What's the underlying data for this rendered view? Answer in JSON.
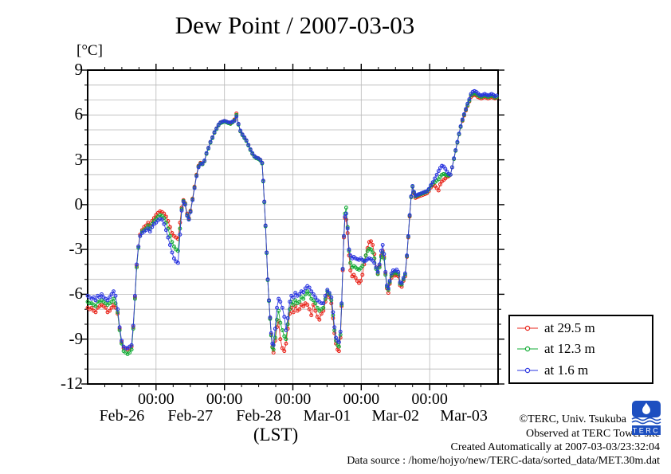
{
  "window": {
    "title": "Dew Point / 2007-03-03"
  },
  "footer": {
    "copyright": "©TERC, Univ. Tsukuba",
    "observed": "Observed at TERC Tower site",
    "created": "Created Automatically at 2007-03-03/23:32:04",
    "datasource": "Data source : /home/hojyo/new/TERC-data/sorted_data/MET.30m.dat",
    "logo_text": "TERC",
    "logo_color": "#1d4fc0"
  },
  "legend": {
    "items": [
      {
        "label": "at 29.5 m",
        "color": "#e8251b"
      },
      {
        "label": "at 12.3 m",
        "color": "#12ab35"
      },
      {
        "label": "at 1.6 m",
        "color": "#2a35e0"
      }
    ]
  },
  "chart_data": {
    "type": "line",
    "title": "Dew Point / 2007-03-03",
    "y_unit_label": "[°C]",
    "xlabel": "(LST)",
    "ylim": [
      -12,
      9
    ],
    "y_major_ticks": [
      9,
      6,
      3,
      0,
      -3,
      -6,
      -9,
      -12
    ],
    "y_minor_step": 1,
    "x_range_hours": [
      0,
      144
    ],
    "x_major_tick_hours": [
      24,
      48,
      72,
      96,
      120
    ],
    "x_major_tick_label": "00:00",
    "x_minor_step_hours": 6,
    "day_labels": [
      "Feb-26",
      "Feb-27",
      "Feb-28",
      "Mar-01",
      "Mar-02",
      "Mar-03"
    ],
    "grid": {
      "h_step_deg": 1,
      "v_at_midnights": true,
      "color": "#b8b8b8"
    },
    "legend_position": "outside-right-bottom",
    "series": [
      {
        "name": "at 29.5 m",
        "color": "#e8251b",
        "column": 1
      },
      {
        "name": "at 12.3 m",
        "color": "#12ab35",
        "column": 2
      },
      {
        "name": "at 1.6 m",
        "color": "#2a35e0",
        "column": 3
      }
    ],
    "points_format": [
      "hours_since_Feb26_0000",
      "dewpoint_29.5m_C",
      "dewpoint_12.3m_C",
      "dewpoint_1.6m_C"
    ],
    "points": [
      [
        0,
        -6.9,
        -6.5,
        -6.1
      ],
      [
        0.7,
        -7.0,
        -6.6,
        -6.2
      ],
      [
        1.4,
        -6.9,
        -6.6,
        -6.3
      ],
      [
        2.1,
        -7.1,
        -6.7,
        -6.2
      ],
      [
        2.8,
        -7.2,
        -6.8,
        -6.4
      ],
      [
        3.5,
        -6.9,
        -6.5,
        -6.1
      ],
      [
        4.2,
        -6.8,
        -6.5,
        -6.2
      ],
      [
        4.9,
        -6.7,
        -6.4,
        -6.0
      ],
      [
        5.6,
        -6.8,
        -6.5,
        -6.2
      ],
      [
        6.3,
        -6.9,
        -6.6,
        -6.3
      ],
      [
        7,
        -7.2,
        -6.7,
        -6.4
      ],
      [
        7.7,
        -7.1,
        -6.6,
        -6.2
      ],
      [
        8.4,
        -6.9,
        -6.5,
        -6.0
      ],
      [
        9.1,
        -6.7,
        -6.3,
        -5.8
      ],
      [
        9.8,
        -6.9,
        -6.6,
        -6.1
      ],
      [
        10.5,
        -7.3,
        -7.2,
        -7.0
      ],
      [
        11.2,
        -8.3,
        -8.4,
        -8.2
      ],
      [
        11.9,
        -9.2,
        -9.3,
        -9.1
      ],
      [
        12.6,
        -9.6,
        -9.8,
        -9.5
      ],
      [
        13.3,
        -9.6,
        -9.9,
        -9.6
      ],
      [
        14,
        -9.7,
        -10.0,
        -9.6
      ],
      [
        14.7,
        -9.6,
        -9.9,
        -9.5
      ],
      [
        15.4,
        -9.5,
        -9.7,
        -9.4
      ],
      [
        16,
        -8.2,
        -8.3,
        -8.1
      ],
      [
        16.6,
        -6.2,
        -6.3,
        -6.1
      ],
      [
        17.2,
        -4.1,
        -4.2,
        -4.0
      ],
      [
        17.8,
        -2.8,
        -2.9,
        -2.8
      ],
      [
        18.4,
        -2.0,
        -2.1,
        -2.1
      ],
      [
        19.1,
        -1.7,
        -1.8,
        -1.9
      ],
      [
        19.8,
        -1.5,
        -1.7,
        -1.8
      ],
      [
        20.5,
        -1.4,
        -1.6,
        -1.7
      ],
      [
        21.2,
        -1.2,
        -1.4,
        -1.6
      ],
      [
        21.9,
        -1.4,
        -1.6,
        -1.8
      ],
      [
        22.6,
        -1.1,
        -1.3,
        -1.5
      ],
      [
        23.3,
        -0.9,
        -1.1,
        -1.3
      ],
      [
        24,
        -0.7,
        -0.95,
        -1.2
      ],
      [
        24.7,
        -0.55,
        -0.8,
        -1.05
      ],
      [
        25.4,
        -0.45,
        -0.7,
        -0.95
      ],
      [
        26.1,
        -0.5,
        -0.75,
        -1.0
      ],
      [
        26.8,
        -0.6,
        -0.9,
        -1.3
      ],
      [
        27.5,
        -0.8,
        -1.2,
        -1.7
      ],
      [
        28.2,
        -1.1,
        -1.6,
        -2.2
      ],
      [
        28.9,
        -1.5,
        -2.1,
        -2.7
      ],
      [
        29.6,
        -1.9,
        -2.5,
        -3.2
      ],
      [
        30.3,
        -2.1,
        -2.8,
        -3.6
      ],
      [
        31,
        -2.2,
        -3.0,
        -3.8
      ],
      [
        31.7,
        -2.3,
        -3.1,
        -3.9
      ],
      [
        32.4,
        -1.2,
        -1.6,
        -2.0
      ],
      [
        33,
        -0.2,
        -0.3,
        -0.4
      ],
      [
        33.6,
        0.3,
        0.25,
        0.2
      ],
      [
        34.2,
        0.1,
        0.05,
        0.0
      ],
      [
        34.9,
        -0.6,
        -0.7,
        -0.75
      ],
      [
        35.5,
        -0.9,
        -0.95,
        -1.0
      ],
      [
        36.1,
        -0.4,
        -0.45,
        -0.5
      ],
      [
        36.8,
        0.4,
        0.35,
        0.3
      ],
      [
        37.5,
        1.2,
        1.15,
        1.1
      ],
      [
        38.2,
        2.0,
        1.95,
        1.9
      ],
      [
        38.9,
        2.6,
        2.55,
        2.5
      ],
      [
        39.6,
        2.8,
        2.75,
        2.7
      ],
      [
        40.3,
        2.7,
        2.7,
        2.75
      ],
      [
        41,
        2.9,
        2.9,
        2.95
      ],
      [
        41.7,
        3.4,
        3.4,
        3.45
      ],
      [
        42.4,
        3.8,
        3.75,
        3.8
      ],
      [
        43.1,
        4.2,
        4.15,
        4.2
      ],
      [
        43.8,
        4.5,
        4.45,
        4.5
      ],
      [
        44.5,
        4.8,
        4.8,
        4.85
      ],
      [
        45.2,
        5.1,
        5.05,
        5.1
      ],
      [
        45.9,
        5.3,
        5.3,
        5.35
      ],
      [
        46.6,
        5.5,
        5.45,
        5.5
      ],
      [
        47.3,
        5.55,
        5.5,
        5.55
      ],
      [
        48,
        5.6,
        5.55,
        5.6
      ],
      [
        48.7,
        5.55,
        5.5,
        5.55
      ],
      [
        49.4,
        5.5,
        5.45,
        5.5
      ],
      [
        50.1,
        5.45,
        5.4,
        5.5
      ],
      [
        50.8,
        5.5,
        5.5,
        5.55
      ],
      [
        51.5,
        5.7,
        5.65,
        5.6
      ],
      [
        52.2,
        6.1,
        6.0,
        5.9
      ],
      [
        52.9,
        5.4,
        5.35,
        5.4
      ],
      [
        53.6,
        4.9,
        4.9,
        4.95
      ],
      [
        54.3,
        4.7,
        4.65,
        4.7
      ],
      [
        55,
        4.5,
        4.45,
        4.5
      ],
      [
        55.7,
        4.3,
        4.25,
        4.3
      ],
      [
        56.4,
        4.0,
        3.95,
        4.0
      ],
      [
        57.1,
        3.7,
        3.65,
        3.7
      ],
      [
        57.8,
        3.4,
        3.4,
        3.45
      ],
      [
        58.5,
        3.25,
        3.2,
        3.25
      ],
      [
        59.2,
        3.15,
        3.1,
        3.15
      ],
      [
        59.9,
        3.1,
        3.05,
        3.1
      ],
      [
        60.6,
        3.0,
        2.95,
        3.0
      ],
      [
        61.2,
        2.8,
        2.75,
        2.8
      ],
      [
        61.6,
        1.6,
        1.55,
        1.6
      ],
      [
        62,
        0.2,
        0.15,
        0.2
      ],
      [
        62.4,
        -1.4,
        -1.45,
        -1.4
      ],
      [
        62.8,
        -3.2,
        -3.25,
        -3.2
      ],
      [
        63.2,
        -5.0,
        -5.05,
        -5.0
      ],
      [
        63.6,
        -6.4,
        -6.45,
        -6.4
      ],
      [
        64,
        -7.6,
        -7.65,
        -7.55
      ],
      [
        64.4,
        -8.7,
        -8.75,
        -8.6
      ],
      [
        64.8,
        -9.5,
        -9.55,
        -9.3
      ],
      [
        65.2,
        -9.9,
        -9.7,
        -9.4
      ],
      [
        65.8,
        -9.1,
        -8.9,
        -8.3
      ],
      [
        66.4,
        -8.2,
        -7.7,
        -6.9
      ],
      [
        67,
        -7.8,
        -7.1,
        -6.3
      ],
      [
        67.6,
        -9.0,
        -7.9,
        -6.5
      ],
      [
        68.3,
        -9.6,
        -8.4,
        -6.9
      ],
      [
        69,
        -9.8,
        -8.8,
        -7.5
      ],
      [
        69.6,
        -9.3,
        -9.0,
        -8.4
      ],
      [
        70.2,
        -8.3,
        -8.0,
        -7.6
      ],
      [
        70.9,
        -7.3,
        -7.0,
        -6.5
      ],
      [
        71.5,
        -6.9,
        -6.5,
        -6.1
      ],
      [
        72.2,
        -7.2,
        -6.7,
        -6.2
      ],
      [
        72.9,
        -6.8,
        -6.4,
        -5.9
      ],
      [
        73.6,
        -7.1,
        -6.6,
        -6.1
      ],
      [
        74.3,
        -7.0,
        -6.5,
        -6.0
      ],
      [
        75,
        -6.7,
        -6.2,
        -5.8
      ],
      [
        75.7,
        -6.8,
        -6.3,
        -5.85
      ],
      [
        76.4,
        -6.6,
        -6.0,
        -5.6
      ],
      [
        77.1,
        -6.7,
        -5.8,
        -5.45
      ],
      [
        77.8,
        -7.0,
        -6.0,
        -5.55
      ],
      [
        78.5,
        -7.4,
        -6.3,
        -5.8
      ],
      [
        79.2,
        -6.7,
        -6.4,
        -6.0
      ],
      [
        79.9,
        -7.1,
        -6.6,
        -6.2
      ],
      [
        80.6,
        -7.5,
        -6.9,
        -6.4
      ],
      [
        81.3,
        -7.7,
        -7.1,
        -6.5
      ],
      [
        82,
        -7.3,
        -7.0,
        -6.6
      ],
      [
        82.7,
        -7.1,
        -6.9,
        -6.6
      ],
      [
        83.4,
        -6.5,
        -6.3,
        -6.1
      ],
      [
        84.1,
        -6.0,
        -5.8,
        -5.7
      ],
      [
        84.8,
        -6.2,
        -6.0,
        -5.9
      ],
      [
        85.5,
        -6.6,
        -6.4,
        -6.2
      ],
      [
        86.1,
        -7.6,
        -7.4,
        -7.2
      ],
      [
        86.6,
        -8.6,
        -8.4,
        -8.2
      ],
      [
        87.1,
        -9.3,
        -9.1,
        -8.9
      ],
      [
        87.7,
        -9.7,
        -9.4,
        -9.1
      ],
      [
        88.2,
        -9.8,
        -9.5,
        -9.2
      ],
      [
        88.7,
        -8.9,
        -8.7,
        -8.5
      ],
      [
        89.1,
        -6.8,
        -6.7,
        -6.6
      ],
      [
        89.5,
        -4.4,
        -4.3,
        -4.3
      ],
      [
        89.9,
        -2.2,
        -2.1,
        -2.1
      ],
      [
        90.3,
        -0.9,
        -0.6,
        -0.8
      ],
      [
        90.7,
        -1.0,
        -0.2,
        -0.6
      ],
      [
        91.2,
        -1.9,
        -1.5,
        -1.6
      ],
      [
        91.7,
        -3.4,
        -3.1,
        -3.0
      ],
      [
        92.2,
        -4.4,
        -3.9,
        -3.4
      ],
      [
        92.8,
        -4.8,
        -4.2,
        -3.6
      ],
      [
        93.4,
        -4.7,
        -4.1,
        -3.5
      ],
      [
        94,
        -4.9,
        -4.2,
        -3.6
      ],
      [
        94.6,
        -5.1,
        -4.3,
        -3.65
      ],
      [
        95.2,
        -5.25,
        -4.35,
        -3.7
      ],
      [
        95.8,
        -5.1,
        -4.25,
        -3.6
      ],
      [
        96.4,
        -4.7,
        -4.1,
        -3.7
      ],
      [
        97,
        -4.0,
        -3.75,
        -3.8
      ],
      [
        97.6,
        -3.4,
        -3.4,
        -3.75
      ],
      [
        98.2,
        -2.9,
        -3.1,
        -3.65
      ],
      [
        98.8,
        -2.5,
        -2.95,
        -3.6
      ],
      [
        99.4,
        -2.45,
        -3.0,
        -3.65
      ],
      [
        100,
        -2.7,
        -3.2,
        -3.75
      ],
      [
        100.6,
        -3.3,
        -3.6,
        -3.9
      ],
      [
        101.2,
        -4.2,
        -4.3,
        -4.2
      ],
      [
        101.8,
        -4.6,
        -4.65,
        -4.5
      ],
      [
        102.4,
        -4.1,
        -4.2,
        -4.0
      ],
      [
        103,
        -3.4,
        -3.5,
        -3.1
      ],
      [
        103.5,
        -3.1,
        -3.2,
        -2.7
      ],
      [
        104,
        -3.5,
        -3.6,
        -3.3
      ],
      [
        104.5,
        -4.6,
        -4.7,
        -4.5
      ],
      [
        105,
        -5.6,
        -5.5,
        -5.4
      ],
      [
        105.5,
        -5.9,
        -5.7,
        -5.6
      ],
      [
        106,
        -5.3,
        -5.2,
        -5.1
      ],
      [
        106.6,
        -4.9,
        -4.75,
        -4.6
      ],
      [
        107.2,
        -4.7,
        -4.55,
        -4.4
      ],
      [
        107.8,
        -4.75,
        -4.6,
        -4.45
      ],
      [
        108.4,
        -4.7,
        -4.55,
        -4.35
      ],
      [
        109,
        -4.8,
        -4.65,
        -4.5
      ],
      [
        109.6,
        -5.4,
        -5.3,
        -5.2
      ],
      [
        110.2,
        -5.5,
        -5.35,
        -5.25
      ],
      [
        110.8,
        -5.1,
        -5.0,
        -4.9
      ],
      [
        111.4,
        -4.8,
        -4.7,
        -4.6
      ],
      [
        112,
        -3.5,
        -3.45,
        -3.4
      ],
      [
        112.5,
        -2.2,
        -2.15,
        -2.1
      ],
      [
        113,
        -0.8,
        -0.75,
        -0.7
      ],
      [
        113.5,
        0.5,
        0.5,
        0.55
      ],
      [
        114,
        1.2,
        1.2,
        1.25
      ],
      [
        114.5,
        0.75,
        0.8,
        0.85
      ],
      [
        115,
        0.45,
        0.55,
        0.6
      ],
      [
        115.6,
        0.5,
        0.6,
        0.65
      ],
      [
        116.2,
        0.55,
        0.65,
        0.7
      ],
      [
        116.9,
        0.6,
        0.7,
        0.75
      ],
      [
        117.6,
        0.65,
        0.75,
        0.8
      ],
      [
        118.3,
        0.7,
        0.8,
        0.85
      ],
      [
        119,
        0.75,
        0.85,
        0.9
      ],
      [
        119.7,
        0.9,
        1.0,
        1.05
      ],
      [
        120.4,
        1.15,
        1.25,
        1.3
      ],
      [
        121.1,
        1.3,
        1.4,
        1.5
      ],
      [
        121.8,
        1.25,
        1.5,
        1.75
      ],
      [
        122.5,
        1.1,
        1.6,
        2.0
      ],
      [
        123.1,
        0.95,
        1.7,
        2.25
      ],
      [
        123.7,
        1.35,
        1.85,
        2.45
      ],
      [
        124.3,
        1.55,
        2.0,
        2.6
      ],
      [
        124.9,
        1.65,
        2.05,
        2.55
      ],
      [
        125.5,
        1.75,
        2.0,
        2.4
      ],
      [
        126.1,
        1.85,
        1.95,
        2.2
      ],
      [
        126.7,
        1.9,
        1.95,
        2.05
      ],
      [
        127.3,
        2.0,
        2.0,
        2.0
      ],
      [
        127.9,
        2.5,
        2.5,
        2.5
      ],
      [
        128.5,
        3.05,
        3.05,
        3.1
      ],
      [
        129.1,
        3.6,
        3.6,
        3.65
      ],
      [
        129.7,
        4.15,
        4.15,
        4.2
      ],
      [
        130.3,
        4.7,
        4.7,
        4.75
      ],
      [
        130.9,
        5.2,
        5.2,
        5.25
      ],
      [
        131.5,
        5.6,
        5.65,
        5.7
      ],
      [
        132.1,
        5.95,
        6.0,
        6.05
      ],
      [
        132.7,
        6.3,
        6.35,
        6.4
      ],
      [
        133.3,
        6.6,
        6.65,
        6.75
      ],
      [
        133.9,
        6.9,
        6.95,
        7.05
      ],
      [
        134.5,
        7.2,
        7.3,
        7.4
      ],
      [
        135.1,
        7.3,
        7.4,
        7.55
      ],
      [
        135.7,
        7.35,
        7.45,
        7.6
      ],
      [
        136.3,
        7.3,
        7.4,
        7.55
      ],
      [
        136.9,
        7.2,
        7.3,
        7.45
      ],
      [
        137.5,
        7.15,
        7.25,
        7.35
      ],
      [
        138.1,
        7.1,
        7.2,
        7.3
      ],
      [
        138.7,
        7.15,
        7.25,
        7.35
      ],
      [
        139.3,
        7.2,
        7.3,
        7.4
      ],
      [
        139.9,
        7.15,
        7.25,
        7.35
      ],
      [
        140.5,
        7.1,
        7.2,
        7.3
      ],
      [
        141.1,
        7.15,
        7.25,
        7.35
      ],
      [
        141.7,
        7.2,
        7.3,
        7.4
      ],
      [
        142.3,
        7.15,
        7.25,
        7.35
      ],
      [
        142.9,
        7.1,
        7.15,
        7.25
      ],
      [
        143.5,
        7.15,
        7.2,
        7.3
      ]
    ]
  }
}
